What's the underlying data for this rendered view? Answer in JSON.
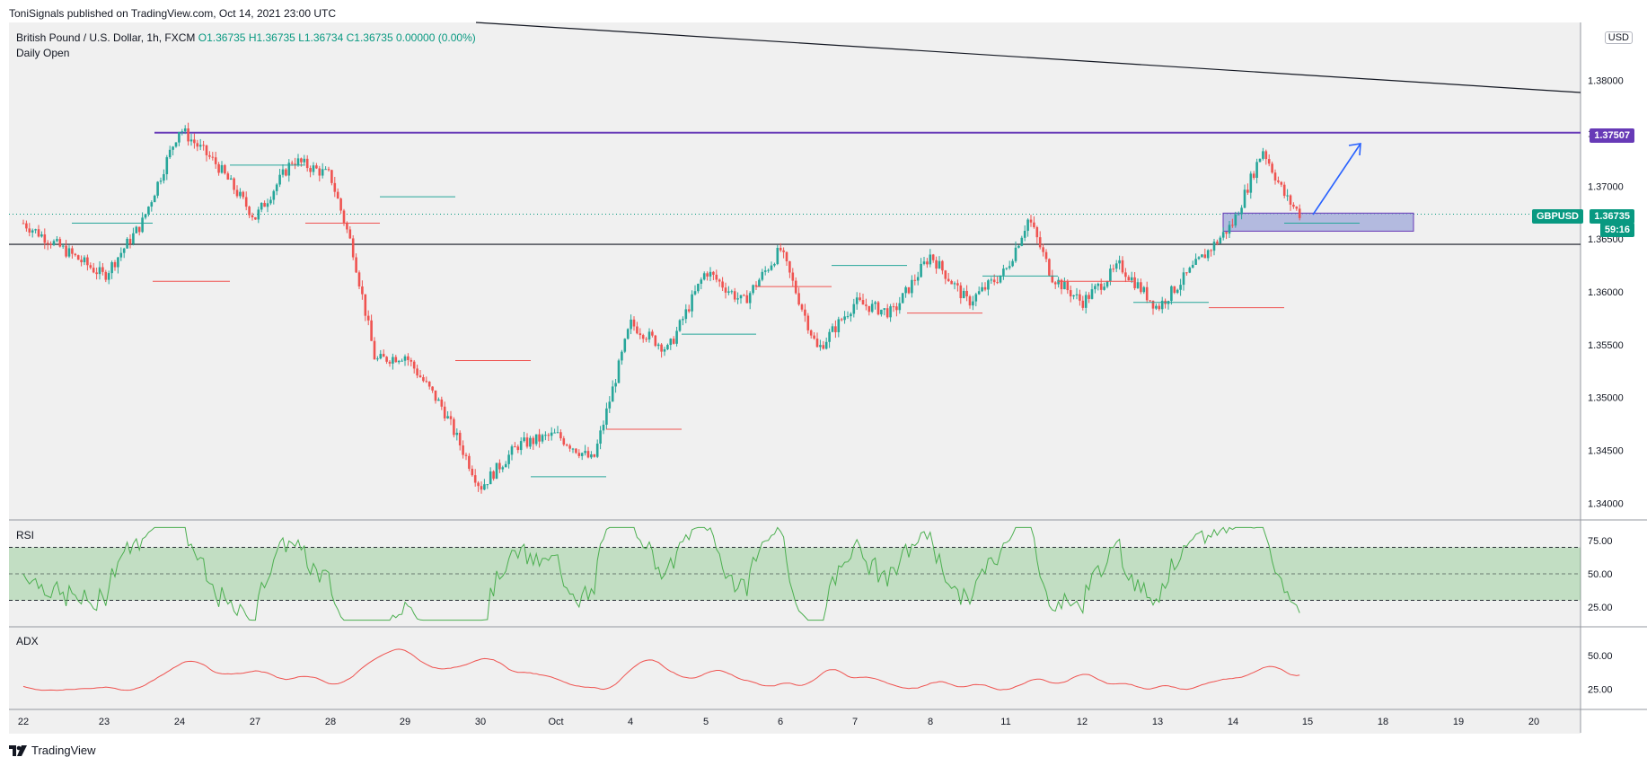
{
  "header": {
    "text": "ToniSignals published on TradingView.com, Oct 14, 2021 23:00 UTC"
  },
  "legend": {
    "symbol": "British Pound / U.S. Dollar, 1h, FXCM",
    "open": "O1.36735",
    "high": "H1.36735",
    "low": "L1.36734",
    "close": "C1.36735",
    "change": "0.00000 (0.00%)",
    "indicator": "Daily Open"
  },
  "currency_badge": "USD",
  "price_tags": {
    "resistance": "1.37507",
    "symbol_tag": "GBPUSD",
    "last_price": "1.36735",
    "countdown": "59:16"
  },
  "panes": {
    "rsi_title": "RSI",
    "adx_title": "ADX"
  },
  "footer": {
    "brand": "TradingView"
  },
  "colors": {
    "up": "#26a69a",
    "down": "#ef5350",
    "rsi_line": "#4caf50",
    "adx_line": "#ef5350",
    "resistance": "#673ab7",
    "zone": "#9fa8da",
    "arrow": "#2962ff"
  },
  "chart_data": [
    {
      "type": "candlestick",
      "title": "British Pound / U.S. Dollar, 1h, FXCM",
      "x_ticks": [
        "22",
        "23",
        "24",
        "27",
        "28",
        "29",
        "30",
        "Oct",
        "4",
        "5",
        "6",
        "7",
        "8",
        "11",
        "12",
        "13",
        "14",
        "15",
        "18",
        "19",
        "20"
      ],
      "y_ticks": [
        "1.34000",
        "1.34500",
        "1.35000",
        "1.35500",
        "1.36000",
        "1.36500",
        "1.37000",
        "1.37500",
        "1.38000"
      ],
      "ylim": [
        1.3385,
        1.3855
      ],
      "approx_path": [
        {
          "date": "22",
          "price": 1.3665
        },
        {
          "date": "23",
          "price": 1.3615
        },
        {
          "date": "23.5",
          "price": 1.3665
        },
        {
          "date": "24",
          "price": 1.3755
        },
        {
          "date": "24.5",
          "price": 1.372
        },
        {
          "date": "27",
          "price": 1.367
        },
        {
          "date": "27.5",
          "price": 1.3725
        },
        {
          "date": "28",
          "price": 1.371
        },
        {
          "date": "28.3",
          "price": 1.364
        },
        {
          "date": "28.6",
          "price": 1.3535
        },
        {
          "date": "29",
          "price": 1.354
        },
        {
          "date": "29.5",
          "price": 1.349
        },
        {
          "date": "30",
          "price": 1.3415
        },
        {
          "date": "30.5",
          "price": 1.3455
        },
        {
          "date": "Oct",
          "price": 1.3465
        },
        {
          "date": "Oct.5",
          "price": 1.344
        },
        {
          "date": "4",
          "price": 1.357
        },
        {
          "date": "4.5",
          "price": 1.3545
        },
        {
          "date": "5",
          "price": 1.362
        },
        {
          "date": "5.5",
          "price": 1.359
        },
        {
          "date": "6",
          "price": 1.364
        },
        {
          "date": "6.5",
          "price": 1.3545
        },
        {
          "date": "7",
          "price": 1.359
        },
        {
          "date": "7.5",
          "price": 1.358
        },
        {
          "date": "8",
          "price": 1.3635
        },
        {
          "date": "8.5",
          "price": 1.359
        },
        {
          "date": "11",
          "price": 1.362
        },
        {
          "date": "11.3",
          "price": 1.367
        },
        {
          "date": "11.6",
          "price": 1.3615
        },
        {
          "date": "12",
          "price": 1.359
        },
        {
          "date": "12.5",
          "price": 1.3625
        },
        {
          "date": "13",
          "price": 1.3585
        },
        {
          "date": "13.5",
          "price": 1.3625
        },
        {
          "date": "14",
          "price": 1.3665
        },
        {
          "date": "14.4",
          "price": 1.3735
        },
        {
          "date": "14.7",
          "price": 1.369
        },
        {
          "date": "14.9",
          "price": 1.36735
        }
      ],
      "annotations": {
        "resistance_line": 1.37507,
        "support_line": 1.3645,
        "demand_zone": [
          1.366,
          1.3672
        ],
        "last_price": 1.36735
      }
    },
    {
      "type": "line",
      "title": "RSI",
      "y_ticks": [
        "25.00",
        "50.00",
        "75.00"
      ],
      "bands": [
        30,
        50,
        70
      ]
    },
    {
      "type": "line",
      "title": "ADX",
      "y_ticks": [
        "25.00",
        "50.00"
      ]
    }
  ]
}
